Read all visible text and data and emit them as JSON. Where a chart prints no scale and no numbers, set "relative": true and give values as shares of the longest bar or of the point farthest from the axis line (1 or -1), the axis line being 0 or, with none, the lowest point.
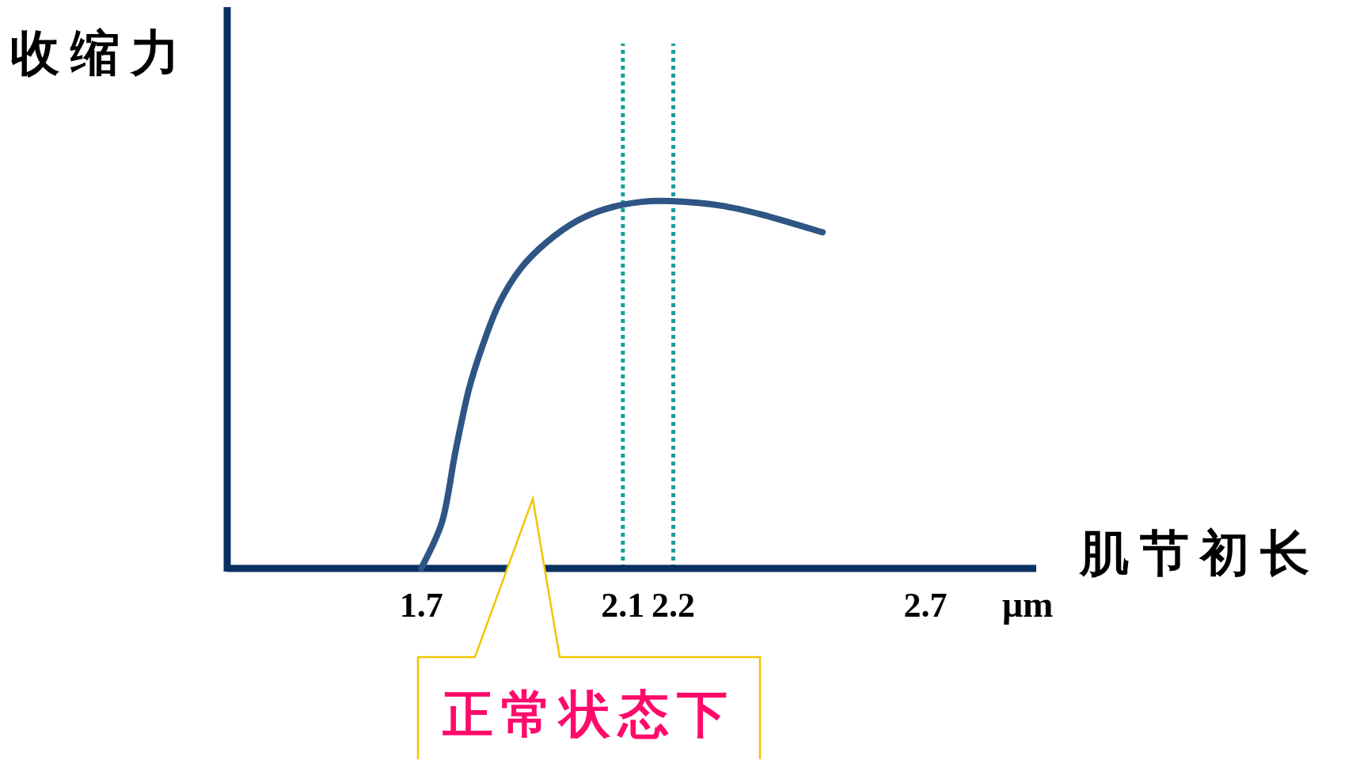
{
  "chart_data": {
    "type": "line",
    "relative": true,
    "xlabel": "肌节初长",
    "ylabel": "收缩力",
    "x": [
      1.7,
      1.742,
      1.768,
      1.794,
      1.82,
      1.854,
      1.897,
      1.948,
      2.009,
      2.069,
      2.138,
      2.198,
      2.293,
      2.379,
      2.496
    ],
    "series": [
      {
        "color": "#2e5584",
        "values": [
          0,
          0.13,
          0.32,
          0.485,
          0.6,
          0.72,
          0.816,
          0.887,
          0.946,
          0.98,
          0.998,
          1,
          0.988,
          0.962,
          0.915
        ]
      }
    ],
    "xlim": [
      1.315,
      2.92
    ],
    "xticks": [
      1.7,
      2.1,
      2.2,
      2.7
    ],
    "ref_lines": [
      {
        "axis": "x",
        "value": 2.1,
        "color": "#1a9e9a",
        "line_style": "dotted"
      },
      {
        "axis": "x",
        "value": 2.2,
        "color": "#1a9e9a",
        "line_style": "dotted"
      }
    ],
    "annotations": [
      "μm",
      "正常状态下"
    ],
    "grid": false,
    "marker": "none",
    "line_style": "solid"
  }
}
